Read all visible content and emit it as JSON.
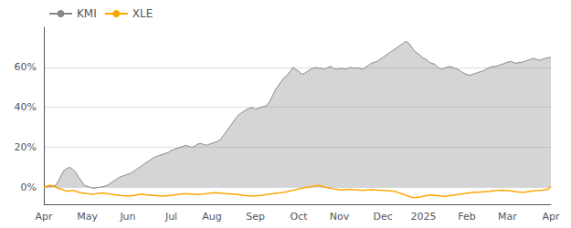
{
  "chart_data": {
    "type": "line",
    "categories": [
      "Apr",
      null,
      null,
      null,
      null,
      null,
      null,
      null,
      null,
      null,
      null,
      null,
      null,
      null,
      null,
      "May",
      null,
      null,
      null,
      null,
      null,
      null,
      null,
      null,
      null,
      null,
      null,
      null,
      null,
      "Jun",
      null,
      null,
      null,
      null,
      null,
      null,
      null,
      null,
      null,
      null,
      null,
      null,
      null,
      null,
      "Jul",
      null,
      null,
      null,
      null,
      null,
      null,
      null,
      null,
      null,
      null,
      null,
      null,
      null,
      "Aug",
      null,
      null,
      null,
      null,
      null,
      null,
      null,
      null,
      null,
      null,
      null,
      null,
      null,
      null,
      "Sep",
      null,
      null,
      null,
      null,
      null,
      null,
      null,
      null,
      null,
      null,
      null,
      null,
      null,
      null,
      "Oct",
      null,
      null,
      null,
      null,
      null,
      null,
      null,
      null,
      null,
      null,
      null,
      null,
      null,
      "Nov",
      null,
      null,
      null,
      null,
      null,
      null,
      null,
      null,
      null,
      null,
      null,
      null,
      null,
      null,
      "Dec",
      null,
      null,
      null,
      null,
      null,
      null,
      null,
      null,
      null,
      null,
      null,
      null,
      null,
      "2025",
      null,
      null,
      null,
      null,
      null,
      null,
      null,
      null,
      null,
      null,
      null,
      null,
      null,
      null,
      "Feb",
      null,
      null,
      null,
      null,
      null,
      null,
      null,
      null,
      null,
      null,
      null,
      null,
      null,
      "Mar",
      null,
      null,
      null,
      null,
      null,
      null,
      null,
      null,
      null,
      null,
      null,
      null,
      null,
      null,
      "Apr"
    ],
    "series": [
      {
        "name": "KMI",
        "color": "#888888",
        "type": "area",
        "values": [
          0.0,
          0.002,
          0.004,
          0.006,
          0.01,
          0.03,
          0.06,
          0.085,
          0.095,
          0.1,
          0.09,
          0.075,
          0.05,
          0.03,
          0.01,
          0.005,
          0.0,
          -0.005,
          -0.003,
          0.0,
          0.002,
          0.005,
          0.01,
          0.02,
          0.03,
          0.04,
          0.05,
          0.055,
          0.06,
          0.065,
          0.07,
          0.08,
          0.09,
          0.1,
          0.11,
          0.12,
          0.13,
          0.14,
          0.15,
          0.155,
          0.16,
          0.165,
          0.17,
          0.175,
          0.185,
          0.19,
          0.195,
          0.2,
          0.205,
          0.21,
          0.205,
          0.2,
          0.205,
          0.215,
          0.22,
          0.215,
          0.21,
          0.215,
          0.22,
          0.225,
          0.23,
          0.24,
          0.26,
          0.28,
          0.3,
          0.32,
          0.34,
          0.36,
          0.37,
          0.38,
          0.39,
          0.395,
          0.4,
          0.39,
          0.395,
          0.4,
          0.405,
          0.41,
          0.43,
          0.46,
          0.49,
          0.51,
          0.53,
          0.55,
          0.56,
          0.58,
          0.6,
          0.59,
          0.58,
          0.565,
          0.57,
          0.58,
          0.59,
          0.595,
          0.6,
          0.595,
          0.595,
          0.59,
          0.6,
          0.605,
          0.595,
          0.59,
          0.595,
          0.595,
          0.59,
          0.595,
          0.6,
          0.595,
          0.598,
          0.595,
          0.59,
          0.6,
          0.61,
          0.62,
          0.625,
          0.63,
          0.64,
          0.65,
          0.66,
          0.67,
          0.68,
          0.69,
          0.7,
          0.71,
          0.72,
          0.73,
          0.72,
          0.7,
          0.68,
          0.67,
          0.66,
          0.645,
          0.64,
          0.625,
          0.62,
          0.615,
          0.6,
          0.59,
          0.595,
          0.6,
          0.605,
          0.6,
          0.595,
          0.59,
          0.58,
          0.57,
          0.565,
          0.56,
          0.565,
          0.57,
          0.575,
          0.58,
          0.585,
          0.595,
          0.6,
          0.605,
          0.605,
          0.61,
          0.615,
          0.62,
          0.625,
          0.63,
          0.625,
          0.62,
          0.625,
          0.625,
          0.63,
          0.635,
          0.64,
          0.645,
          0.64,
          0.635,
          0.64,
          0.645,
          0.648,
          0.65
        ]
      },
      {
        "name": "XLE",
        "color": "#FFA500",
        "type": "line",
        "values": [
          0.0,
          0.005,
          0.01,
          0.008,
          0.002,
          -0.005,
          -0.01,
          -0.015,
          -0.02,
          -0.018,
          -0.015,
          -0.02,
          -0.025,
          -0.028,
          -0.03,
          -0.032,
          -0.034,
          -0.035,
          -0.032,
          -0.03,
          -0.028,
          -0.03,
          -0.032,
          -0.035,
          -0.037,
          -0.038,
          -0.04,
          -0.042,
          -0.043,
          -0.044,
          -0.042,
          -0.04,
          -0.038,
          -0.036,
          -0.035,
          -0.037,
          -0.038,
          -0.04,
          -0.041,
          -0.042,
          -0.043,
          -0.044,
          -0.043,
          -0.042,
          -0.04,
          -0.038,
          -0.036,
          -0.035,
          -0.033,
          -0.032,
          -0.033,
          -0.034,
          -0.035,
          -0.036,
          -0.035,
          -0.034,
          -0.032,
          -0.03,
          -0.028,
          -0.027,
          -0.028,
          -0.029,
          -0.03,
          -0.032,
          -0.033,
          -0.034,
          -0.035,
          -0.036,
          -0.038,
          -0.04,
          -0.042,
          -0.043,
          -0.044,
          -0.043,
          -0.042,
          -0.04,
          -0.038,
          -0.036,
          -0.034,
          -0.032,
          -0.03,
          -0.028,
          -0.027,
          -0.025,
          -0.022,
          -0.018,
          -0.015,
          -0.012,
          -0.008,
          -0.005,
          -0.002,
          0.0,
          0.002,
          0.005,
          0.008,
          0.01,
          0.005,
          0.0,
          -0.002,
          -0.005,
          -0.008,
          -0.01,
          -0.012,
          -0.013,
          -0.012,
          -0.011,
          -0.01,
          -0.012,
          -0.013,
          -0.014,
          -0.015,
          -0.014,
          -0.013,
          -0.012,
          -0.013,
          -0.014,
          -0.015,
          -0.016,
          -0.017,
          -0.018,
          -0.019,
          -0.02,
          -0.025,
          -0.03,
          -0.035,
          -0.04,
          -0.045,
          -0.05,
          -0.052,
          -0.05,
          -0.048,
          -0.045,
          -0.042,
          -0.04,
          -0.038,
          -0.04,
          -0.042,
          -0.044,
          -0.045,
          -0.044,
          -0.042,
          -0.04,
          -0.038,
          -0.036,
          -0.034,
          -0.032,
          -0.03,
          -0.028,
          -0.026,
          -0.025,
          -0.024,
          -0.023,
          -0.022,
          -0.021,
          -0.02,
          -0.018,
          -0.016,
          -0.015,
          -0.014,
          -0.015,
          -0.016,
          -0.018,
          -0.02,
          -0.022,
          -0.024,
          -0.025,
          -0.024,
          -0.022,
          -0.02,
          -0.018,
          -0.016,
          -0.015,
          -0.014,
          -0.012,
          -0.01,
          0.005
        ]
      }
    ],
    "ylim": [
      -0.085,
      0.8
    ],
    "yticks": [
      {
        "value": 0.0,
        "label": "0%"
      },
      {
        "value": 0.2,
        "label": "20%"
      },
      {
        "value": 0.4,
        "label": "40%"
      },
      {
        "value": 0.6,
        "label": "60%"
      }
    ],
    "grid": true,
    "legend": "upper left"
  }
}
